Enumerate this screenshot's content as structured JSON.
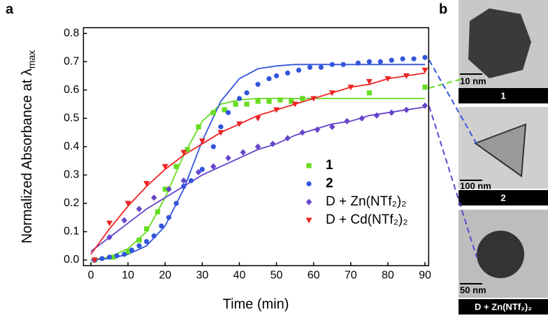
{
  "chart_data": {
    "type": "scatter",
    "panel_label": "a",
    "x_label": "Time (min)",
    "y_label": "Normalized Absorbance at λ",
    "y_label_sub": "max",
    "xlim": [
      -2,
      91
    ],
    "ylim": [
      -0.02,
      0.82
    ],
    "xticks": [
      0,
      10,
      20,
      30,
      40,
      50,
      60,
      70,
      80,
      90
    ],
    "yticks": [
      {
        "value": 0,
        "label": "0.0"
      },
      0.1,
      0.2,
      0.3,
      0.4,
      0.5,
      0.6,
      0.7,
      0.8
    ],
    "fit_x": [
      0,
      5,
      10,
      15,
      20,
      25,
      30,
      35,
      40,
      45,
      50,
      55,
      60,
      65,
      70,
      75,
      80,
      85,
      90
    ],
    "series": [
      {
        "name": "1",
        "color": "#66dd22",
        "marker": "square",
        "x": [
          1,
          6,
          10,
          13,
          15,
          18,
          20,
          23,
          26,
          29,
          33,
          36,
          39,
          42,
          45,
          48,
          51,
          54,
          57,
          75,
          90
        ],
        "values": [
          0.0,
          0.01,
          0.03,
          0.07,
          0.11,
          0.17,
          0.25,
          0.33,
          0.39,
          0.47,
          0.52,
          0.53,
          0.55,
          0.55,
          0.56,
          0.56,
          0.565,
          0.56,
          0.57,
          0.59,
          0.61
        ],
        "fit": [
          0.0,
          0.01,
          0.04,
          0.1,
          0.22,
          0.37,
          0.49,
          0.55,
          0.565,
          0.57,
          0.57,
          0.57,
          0.57,
          0.57,
          0.57,
          0.57,
          0.57,
          0.57,
          0.57
        ]
      },
      {
        "name": "2",
        "color": "#3355dd",
        "marker": "circle",
        "x": [
          1,
          3,
          5,
          7,
          9,
          11,
          13,
          15,
          17,
          19,
          21,
          23,
          25,
          27,
          30,
          33,
          35,
          37,
          40,
          42,
          45,
          48,
          50,
          53,
          56,
          59,
          62,
          65,
          68,
          72,
          75,
          78,
          81,
          84,
          87,
          90
        ],
        "values": [
          0.0,
          0.005,
          0.01,
          0.015,
          0.02,
          0.035,
          0.05,
          0.065,
          0.085,
          0.12,
          0.15,
          0.2,
          0.26,
          0.28,
          0.32,
          0.4,
          0.47,
          0.52,
          0.57,
          0.59,
          0.62,
          0.64,
          0.65,
          0.66,
          0.67,
          0.68,
          0.68,
          0.69,
          0.69,
          0.695,
          0.7,
          0.7,
          0.705,
          0.71,
          0.71,
          0.715
        ],
        "fit": [
          0.0,
          0.005,
          0.02,
          0.05,
          0.12,
          0.25,
          0.42,
          0.56,
          0.64,
          0.675,
          0.685,
          0.69,
          0.69,
          0.69,
          0.69,
          0.69,
          0.69,
          0.69,
          0.69
        ]
      },
      {
        "name": "D + Zn(NTf₂)₂",
        "color": "#6644cc",
        "marker": "diamond",
        "x": [
          1,
          5,
          9,
          13,
          17,
          21,
          25,
          29,
          33,
          37,
          41,
          45,
          49,
          53,
          57,
          61,
          65,
          69,
          73,
          77,
          81,
          85,
          90
        ],
        "values": [
          0.0,
          0.08,
          0.14,
          0.18,
          0.22,
          0.25,
          0.28,
          0.31,
          0.33,
          0.36,
          0.38,
          0.4,
          0.41,
          0.43,
          0.45,
          0.46,
          0.47,
          0.49,
          0.5,
          0.51,
          0.52,
          0.53,
          0.545
        ],
        "fit": [
          0.03,
          0.08,
          0.13,
          0.18,
          0.22,
          0.26,
          0.3,
          0.33,
          0.36,
          0.39,
          0.41,
          0.44,
          0.46,
          0.48,
          0.49,
          0.51,
          0.52,
          0.53,
          0.54
        ]
      },
      {
        "name": "D + Cd(NTf₂)₂",
        "color": "#ee2222",
        "marker": "triangle-down",
        "x": [
          1,
          5,
          10,
          15,
          20,
          25,
          30,
          35,
          40,
          45,
          50,
          55,
          60,
          65,
          70,
          75,
          80,
          85,
          90
        ],
        "values": [
          0.0,
          0.13,
          0.2,
          0.27,
          0.33,
          0.38,
          0.42,
          0.45,
          0.48,
          0.5,
          0.53,
          0.55,
          0.57,
          0.59,
          0.61,
          0.63,
          0.64,
          0.65,
          0.67
        ],
        "fit": [
          0.02,
          0.11,
          0.19,
          0.26,
          0.32,
          0.37,
          0.41,
          0.45,
          0.48,
          0.51,
          0.53,
          0.55,
          0.57,
          0.59,
          0.61,
          0.62,
          0.64,
          0.65,
          0.66
        ]
      }
    ]
  },
  "panel_b": {
    "label": "b",
    "images": [
      {
        "scale": "10 nm",
        "caption": "1"
      },
      {
        "scale": "100 nm",
        "caption": "2"
      },
      {
        "scale": "50 nm",
        "caption": "D + Zn(NTf₂)₂"
      }
    ]
  }
}
